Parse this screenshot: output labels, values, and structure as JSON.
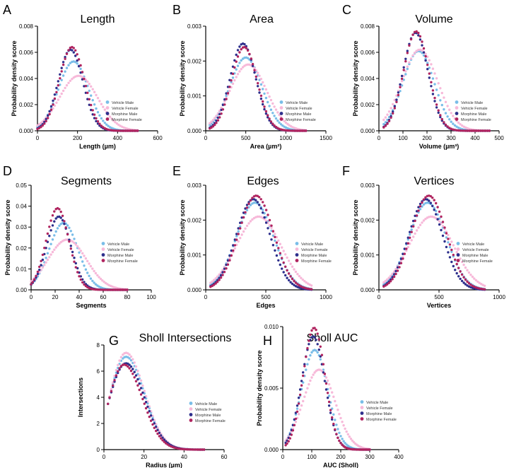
{
  "figure": {
    "legend_entries": [
      "Vehicle Male",
      "Vehicle Female",
      "Morphine Male",
      "Morphine Female"
    ],
    "colors": {
      "vehicle_male": "#79bde8",
      "vehicle_female": "#f7b9d9",
      "morphine_male": "#2d2f8c",
      "morphine_female": "#b0245f",
      "axis": "#000000"
    }
  },
  "chart_data": [
    {
      "id": "A",
      "panel_letter": "A",
      "type": "scatter",
      "title": "Length",
      "xlabel": "Length (µm)",
      "ylabel": "Probability density score",
      "xlim": [
        0,
        600
      ],
      "ylim": [
        0,
        0.008
      ],
      "xticks": [
        "0",
        "200",
        "400",
        "600"
      ],
      "yticks": [
        "0.000",
        "0.002",
        "0.004",
        "0.006",
        "0.008"
      ],
      "xmin": 0,
      "xmax": 500,
      "series": [
        {
          "name": "Vehicle Male",
          "mean": 180,
          "sd": 75,
          "peak": 0.0053
        },
        {
          "name": "Vehicle Female",
          "mean": 205,
          "sd": 95,
          "peak": 0.0042
        },
        {
          "name": "Morphine Male",
          "mean": 165,
          "sd": 62,
          "peak": 0.0062
        },
        {
          "name": "Morphine Female",
          "mean": 172,
          "sd": 62,
          "peak": 0.0064
        }
      ]
    },
    {
      "id": "B",
      "panel_letter": "B",
      "type": "scatter",
      "title": "Area",
      "xlabel": "Area (µm²)",
      "ylabel": "Probability density score",
      "xlim": [
        0,
        1500
      ],
      "ylim": [
        0,
        0.003
      ],
      "xticks": [
        "0",
        "500",
        "1000",
        "1500"
      ],
      "yticks": [
        "0.000",
        "0.001",
        "0.002",
        "0.003"
      ],
      "xmin": 50,
      "xmax": 1250,
      "series": [
        {
          "name": "Vehicle Male",
          "mean": 500,
          "sd": 200,
          "peak": 0.0021
        },
        {
          "name": "Vehicle Female",
          "mean": 530,
          "sd": 230,
          "peak": 0.0019
        },
        {
          "name": "Morphine Male",
          "mean": 465,
          "sd": 160,
          "peak": 0.0025
        },
        {
          "name": "Morphine Female",
          "mean": 480,
          "sd": 160,
          "peak": 0.0024
        }
      ]
    },
    {
      "id": "C",
      "panel_letter": "C",
      "type": "scatter",
      "title": "Volume",
      "xlabel": "Volume (µm³)",
      "ylabel": "Probability density score",
      "xlim": [
        0,
        500
      ],
      "ylim": [
        0,
        0.008
      ],
      "xticks": [
        "0",
        "100",
        "200",
        "300",
        "400",
        "500"
      ],
      "yticks": [
        "0.000",
        "0.002",
        "0.004",
        "0.006",
        "0.008"
      ],
      "xmin": 20,
      "xmax": 460,
      "series": [
        {
          "name": "Vehicle Male",
          "mean": 165,
          "sd": 65,
          "peak": 0.0061
        },
        {
          "name": "Vehicle Female",
          "mean": 170,
          "sd": 75,
          "peak": 0.0062
        },
        {
          "name": "Morphine Male",
          "mean": 152,
          "sd": 52,
          "peak": 0.0075
        },
        {
          "name": "Morphine Female",
          "mean": 155,
          "sd": 52,
          "peak": 0.0076
        }
      ]
    },
    {
      "id": "D",
      "panel_letter": "D",
      "type": "scatter",
      "title": "Segments",
      "xlabel": "Segments",
      "ylabel": "Probability density score",
      "xlim": [
        0,
        100
      ],
      "ylim": [
        0,
        0.05
      ],
      "xticks": [
        "0",
        "20",
        "40",
        "60",
        "80",
        "100"
      ],
      "yticks": [
        "0.00",
        "0.01",
        "0.02",
        "0.03",
        "0.04",
        "0.05"
      ],
      "xmin": 0,
      "xmax": 80,
      "series": [
        {
          "name": "Vehicle Male",
          "mean": 27,
          "sd": 12,
          "peak": 0.032
        },
        {
          "name": "Vehicle Female",
          "mean": 30,
          "sd": 16,
          "peak": 0.024
        },
        {
          "name": "Morphine Male",
          "mean": 23,
          "sd": 10,
          "peak": 0.035
        },
        {
          "name": "Morphine Female",
          "mean": 22,
          "sd": 9.5,
          "peak": 0.039
        }
      ]
    },
    {
      "id": "E",
      "panel_letter": "E",
      "type": "scatter",
      "title": "Edges",
      "xlabel": "Edges",
      "ylabel": "Probability density score",
      "xlim": [
        0,
        1000
      ],
      "ylim": [
        0,
        0.003
      ],
      "xticks": [
        "0",
        "500",
        "1000"
      ],
      "yticks": [
        "0.000",
        "0.001",
        "0.002",
        "0.003"
      ],
      "xmin": 40,
      "xmax": 880,
      "series": [
        {
          "name": "Vehicle Male",
          "mean": 410,
          "sd": 155,
          "peak": 0.0025
        },
        {
          "name": "Vehicle Female",
          "mean": 440,
          "sd": 185,
          "peak": 0.0021
        },
        {
          "name": "Morphine Male",
          "mean": 395,
          "sd": 140,
          "peak": 0.0026
        },
        {
          "name": "Morphine Female",
          "mean": 420,
          "sd": 145,
          "peak": 0.0027
        }
      ]
    },
    {
      "id": "F",
      "panel_letter": "F",
      "type": "scatter",
      "title": "Vertices",
      "xlabel": "Vertices",
      "ylabel": "Probability density score",
      "xlim": [
        0,
        1000
      ],
      "ylim": [
        0,
        0.003
      ],
      "xticks": [
        "0",
        "500",
        "1000"
      ],
      "yticks": [
        "0.000",
        "0.001",
        "0.002",
        "0.003"
      ],
      "xmin": 40,
      "xmax": 880,
      "series": [
        {
          "name": "Vehicle Male",
          "mean": 405,
          "sd": 155,
          "peak": 0.0025
        },
        {
          "name": "Vehicle Female",
          "mean": 435,
          "sd": 185,
          "peak": 0.0021
        },
        {
          "name": "Morphine Male",
          "mean": 390,
          "sd": 140,
          "peak": 0.0026
        },
        {
          "name": "Morphine Female",
          "mean": 415,
          "sd": 145,
          "peak": 0.0027
        }
      ]
    },
    {
      "id": "G",
      "panel_letter": "G",
      "type": "scatter",
      "title": "Sholl Intersections",
      "xlabel": "Radius (µm)",
      "ylabel": "Intersections",
      "xlim": [
        0,
        60
      ],
      "ylim": [
        0,
        8
      ],
      "xticks": [
        "0",
        "20",
        "40",
        "60"
      ],
      "yticks": [
        "0",
        "2",
        "4",
        "6",
        "8"
      ],
      "xmin": 2,
      "xmax": 50,
      "series": [
        {
          "name": "Vehicle Male",
          "peak_x": 11,
          "peak": 7.1
        },
        {
          "name": "Vehicle Female",
          "peak_x": 11,
          "peak": 7.4
        },
        {
          "name": "Morphine Male",
          "peak_x": 11,
          "peak": 6.6
        },
        {
          "name": "Morphine Female",
          "peak_x": 10,
          "peak": 6.5
        }
      ]
    },
    {
      "id": "H",
      "panel_letter": "H",
      "type": "scatter",
      "title": "Sholl AUC",
      "xlabel": "AUC (Sholl)",
      "ylabel": "Probability density score",
      "xlim": [
        0,
        400
      ],
      "ylim": [
        0,
        0.01
      ],
      "xticks": [
        "0",
        "100",
        "200",
        "300",
        "400"
      ],
      "yticks": [
        "0.000",
        "0.005",
        "0.010"
      ],
      "xmin": 10,
      "xmax": 300,
      "series": [
        {
          "name": "Vehicle Male",
          "mean": 110,
          "sd": 45,
          "peak": 0.0081
        },
        {
          "name": "Vehicle Female",
          "mean": 125,
          "sd": 55,
          "peak": 0.0065
        },
        {
          "name": "Morphine Male",
          "mean": 105,
          "sd": 40,
          "peak": 0.0092
        },
        {
          "name": "Morphine Female",
          "mean": 108,
          "sd": 38,
          "peak": 0.0099
        }
      ]
    }
  ]
}
